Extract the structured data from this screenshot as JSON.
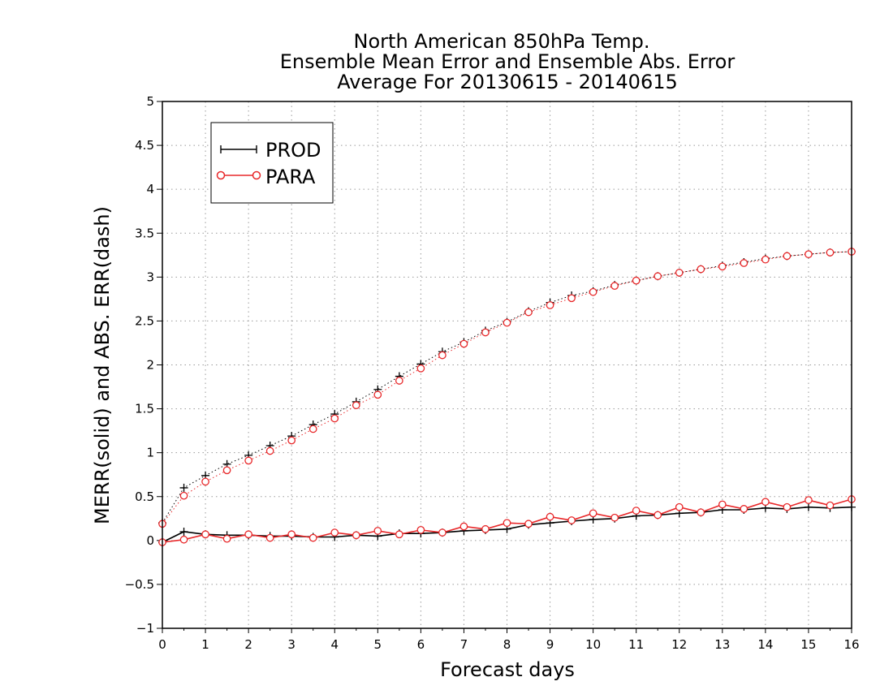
{
  "chart_data": {
    "type": "line",
    "title": [
      "North American 850hPa Temp.",
      "Ensemble Mean Error and Ensemble Abs. Error",
      "Average For 20130615 - 20140615"
    ],
    "xlabel": "Forecast days",
    "ylabel": "MERR(solid) and ABS. ERR(dash)",
    "xlim": [
      0,
      16
    ],
    "ylim": [
      -1,
      5
    ],
    "x_ticks": [
      0,
      1,
      2,
      3,
      4,
      5,
      6,
      7,
      8,
      9,
      10,
      11,
      12,
      13,
      14,
      15,
      16
    ],
    "y_ticks": [
      -1,
      -0.5,
      0,
      0.5,
      1,
      1.5,
      2,
      2.5,
      3,
      3.5,
      4,
      4.5,
      5
    ],
    "x_tick_labels": [
      "0",
      "1",
      "2",
      "3",
      "4",
      "5",
      "6",
      "7",
      "8",
      "9",
      "10",
      "11",
      "12",
      "13",
      "14",
      "15",
      "16"
    ],
    "y_tick_labels": [
      "−1",
      "−0.5",
      "0",
      "0.5",
      "1",
      "1.5",
      "2",
      "2.5",
      "3",
      "3.5",
      "4",
      "4.5",
      "5"
    ],
    "grid": true,
    "legend_position": "top-left",
    "legend": [
      {
        "name": "PROD",
        "color": "#000000",
        "marker": "plus"
      },
      {
        "name": "PARA",
        "color": "#e8282a",
        "marker": "circle"
      }
    ],
    "x": [
      0,
      0.5,
      1,
      1.5,
      2,
      2.5,
      3,
      3.5,
      4,
      4.5,
      5,
      5.5,
      6,
      6.5,
      7,
      7.5,
      8,
      8.5,
      9,
      9.5,
      10,
      10.5,
      11,
      11.5,
      12,
      12.5,
      13,
      13.5,
      14,
      14.5,
      15,
      15.5,
      16
    ],
    "series": [
      {
        "name": "PROD",
        "kind": "MERR",
        "style": "solid",
        "color": "#000000",
        "marker": "plus",
        "values": [
          -0.02,
          0.1,
          0.07,
          0.06,
          0.06,
          0.05,
          0.05,
          0.04,
          0.04,
          0.06,
          0.05,
          0.08,
          0.08,
          0.09,
          0.11,
          0.12,
          0.13,
          0.18,
          0.2,
          0.22,
          0.24,
          0.25,
          0.28,
          0.29,
          0.31,
          0.32,
          0.35,
          0.35,
          0.37,
          0.36,
          0.38,
          0.37,
          0.38
        ]
      },
      {
        "name": "PARA",
        "kind": "MERR",
        "style": "solid",
        "color": "#e8282a",
        "marker": "circle",
        "values": [
          -0.02,
          0.01,
          0.07,
          0.02,
          0.07,
          0.03,
          0.07,
          0.03,
          0.09,
          0.06,
          0.11,
          0.07,
          0.12,
          0.09,
          0.16,
          0.13,
          0.2,
          0.19,
          0.27,
          0.23,
          0.31,
          0.26,
          0.34,
          0.29,
          0.38,
          0.32,
          0.41,
          0.36,
          0.44,
          0.38,
          0.46,
          0.4,
          0.47
        ]
      },
      {
        "name": "PROD",
        "kind": "ABS. ERR",
        "style": "dotted",
        "color": "#000000",
        "marker": "plus",
        "values": [
          0.2,
          0.6,
          0.74,
          0.87,
          0.97,
          1.08,
          1.19,
          1.32,
          1.44,
          1.58,
          1.72,
          1.87,
          2.01,
          2.15,
          2.26,
          2.39,
          2.49,
          2.61,
          2.71,
          2.79,
          2.84,
          2.91,
          2.96,
          3.01,
          3.05,
          3.09,
          3.13,
          3.17,
          3.21,
          3.24,
          3.26,
          3.28,
          3.29
        ]
      },
      {
        "name": "PARA",
        "kind": "ABS. ERR",
        "style": "dotted",
        "color": "#e8282a",
        "marker": "circle",
        "values": [
          0.19,
          0.51,
          0.67,
          0.8,
          0.91,
          1.02,
          1.14,
          1.27,
          1.39,
          1.54,
          1.66,
          1.82,
          1.96,
          2.11,
          2.24,
          2.37,
          2.48,
          2.6,
          2.68,
          2.76,
          2.83,
          2.9,
          2.96,
          3.01,
          3.05,
          3.09,
          3.12,
          3.16,
          3.2,
          3.24,
          3.26,
          3.28,
          3.29
        ]
      }
    ]
  }
}
